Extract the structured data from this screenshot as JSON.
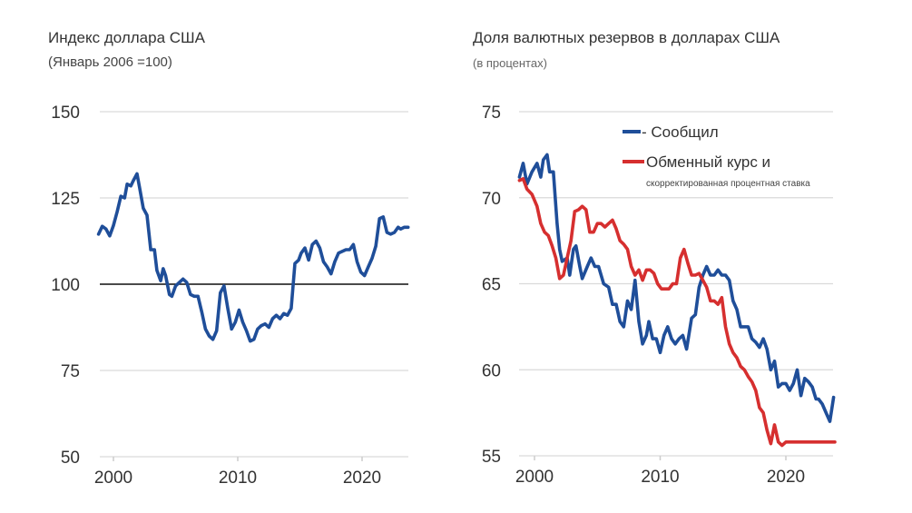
{
  "chart_data": [
    {
      "type": "line",
      "title": "Индекс доллара США",
      "subtitle": "(Январь 2006 =100)",
      "xlabel": "",
      "ylabel": "",
      "xlim": [
        1999,
        2024
      ],
      "ylim": [
        50,
        150
      ],
      "x_ticks": [
        "2000",
        "2010",
        "2020"
      ],
      "y_ticks": [
        "150",
        "125",
        "100",
        "75",
        "50"
      ],
      "reference_line": 100,
      "grid": true,
      "colors": {
        "series": "#1f4e99",
        "reference": "#111111",
        "grid": "#d9d9d9"
      },
      "series": [
        {
          "name": "Индекс доллара США",
          "x": [
            1998.8,
            1999.1,
            1999.4,
            1999.7,
            2000.0,
            2000.3,
            2000.6,
            2000.9,
            2001.1,
            2001.4,
            2001.6,
            2001.9,
            2002.1,
            2002.4,
            2002.7,
            2003.0,
            2003.3,
            2003.5,
            2003.8,
            2004.0,
            2004.2,
            2004.5,
            2004.7,
            2005.0,
            2005.3,
            2005.6,
            2005.9,
            2006.2,
            2006.5,
            2006.8,
            2007.1,
            2007.4,
            2007.7,
            2008.0,
            2008.3,
            2008.6,
            2008.9,
            2009.2,
            2009.5,
            2009.8,
            2010.1,
            2010.4,
            2010.7,
            2011.0,
            2011.3,
            2011.6,
            2011.9,
            2012.2,
            2012.5,
            2012.8,
            2013.1,
            2013.4,
            2013.7,
            2014.0,
            2014.3,
            2014.6,
            2014.9,
            2015.1,
            2015.4,
            2015.7,
            2016.0,
            2016.3,
            2016.6,
            2016.9,
            2017.2,
            2017.5,
            2017.8,
            2018.1,
            2018.4,
            2018.7,
            2019.0,
            2019.3,
            2019.6,
            2019.9,
            2020.2,
            2020.5,
            2020.8,
            2021.1,
            2021.4,
            2021.7,
            2022.0,
            2022.3,
            2022.6,
            2022.9,
            2023.1,
            2023.4,
            2023.7
          ],
          "values": [
            114.5,
            116.8,
            116,
            114,
            117,
            121,
            125.5,
            125,
            129,
            128.5,
            130,
            132,
            128,
            122,
            120,
            110,
            110,
            104,
            101,
            104.5,
            102.5,
            97,
            96.5,
            99.5,
            100.5,
            101.5,
            100.5,
            97,
            96.5,
            96.5,
            92,
            87,
            85,
            84,
            86.5,
            97.5,
            99.5,
            93,
            87,
            89,
            92.5,
            89,
            86.5,
            83.5,
            84,
            87,
            88,
            88.5,
            87.5,
            90,
            91,
            90,
            91.5,
            91,
            93,
            106,
            107,
            109,
            110.5,
            107,
            111.5,
            112.5,
            110.5,
            106.5,
            105,
            103,
            106.5,
            109,
            109.5,
            110,
            110,
            111.5,
            106.5,
            103.5,
            102.5,
            105,
            107.5,
            111,
            119,
            119.5,
            115,
            114.5,
            115,
            116.5,
            116,
            116.5,
            116.5
          ]
        }
      ]
    },
    {
      "type": "line",
      "title": "Доля валютных резервов в долларах США",
      "subtitle": "(в процентах)",
      "xlabel": "",
      "ylabel": "",
      "xlim": [
        1999,
        2024
      ],
      "ylim": [
        55,
        75
      ],
      "x_ticks": [
        "2000",
        "2010",
        "2020"
      ],
      "y_ticks": [
        "75",
        "70",
        "65",
        "60",
        "55"
      ],
      "grid": true,
      "legend": {
        "position": "top-right",
        "items": [
          {
            "label": "- Сообщил",
            "color": "#1f4e99"
          },
          {
            "label": "Обменный курс и",
            "sublabel": "скорректированная процентная ставка",
            "color": "#d62f2f"
          }
        ]
      },
      "series": [
        {
          "name": "Сообщил",
          "color": "#1f4e99",
          "x": [
            1998.8,
            1999.1,
            1999.4,
            1999.8,
            2000.2,
            2000.5,
            2000.7,
            2001.0,
            2001.2,
            2001.5,
            2001.8,
            2002.0,
            2002.2,
            2002.6,
            2002.8,
            2003.1,
            2003.3,
            2003.6,
            2003.8,
            2004.2,
            2004.5,
            2004.8,
            2005.1,
            2005.5,
            2005.9,
            2006.2,
            2006.5,
            2006.8,
            2007.1,
            2007.4,
            2007.7,
            2008.0,
            2008.3,
            2008.6,
            2008.9,
            2009.1,
            2009.4,
            2009.7,
            2010.0,
            2010.3,
            2010.6,
            2010.9,
            2011.2,
            2011.5,
            2011.8,
            2012.1,
            2012.5,
            2012.8,
            2013.1,
            2013.4,
            2013.7,
            2014.0,
            2014.3,
            2014.6,
            2014.9,
            2015.2,
            2015.5,
            2015.8,
            2016.1,
            2016.4,
            2016.7,
            2017.0,
            2017.3,
            2017.6,
            2017.9,
            2018.2,
            2018.5,
            2018.8,
            2019.1,
            2019.4,
            2019.7,
            2020.0,
            2020.3,
            2020.6,
            2020.9,
            2021.2,
            2021.5,
            2021.8,
            2022.1,
            2022.4,
            2022.6,
            2022.9,
            2023.2,
            2023.5,
            2023.8
          ],
          "values": [
            71.2,
            72,
            70.8,
            71.5,
            72,
            71.2,
            72.2,
            72.5,
            71.5,
            71.5,
            68.5,
            67,
            66.3,
            66.5,
            65.5,
            67,
            67.2,
            66,
            65.3,
            66,
            66.5,
            66,
            66,
            65,
            64.8,
            63.8,
            63.8,
            62.8,
            62.5,
            64,
            63.5,
            65.2,
            62.8,
            61.5,
            62,
            62.8,
            61.8,
            61.8,
            61,
            62,
            62.5,
            61.8,
            61.5,
            61.8,
            62,
            61.2,
            63,
            63.2,
            64.8,
            65.5,
            66,
            65.5,
            65.5,
            65.8,
            65.5,
            65.5,
            65.2,
            64,
            63.5,
            62.5,
            62.5,
            62.5,
            61.8,
            61.6,
            61.3,
            61.8,
            61.2,
            60,
            60.5,
            59,
            59.2,
            59.2,
            58.8,
            59.2,
            60,
            58.5,
            59.5,
            59.3,
            59,
            58.3,
            58.3,
            58,
            57.5,
            57,
            58.4
          ],
          "note": "approximate"
        },
        {
          "name": "Обменный курс и скорректированная процентная ставка",
          "color": "#d62f2f",
          "x": [
            1998.8,
            1999.1,
            1999.4,
            1999.8,
            2000.2,
            2000.5,
            2000.8,
            2001.1,
            2001.4,
            2001.7,
            2002.0,
            2002.3,
            2002.6,
            2002.9,
            2003.2,
            2003.5,
            2003.8,
            2004.1,
            2004.4,
            2004.7,
            2005.0,
            2005.3,
            2005.6,
            2005.9,
            2006.2,
            2006.5,
            2006.8,
            2007.1,
            2007.4,
            2007.7,
            2008.0,
            2008.3,
            2008.6,
            2008.9,
            2009.2,
            2009.5,
            2009.8,
            2010.1,
            2010.4,
            2010.7,
            2011.0,
            2011.3,
            2011.6,
            2011.9,
            2012.2,
            2012.5,
            2012.8,
            2013.1,
            2013.4,
            2013.7,
            2014.0,
            2014.3,
            2014.6,
            2014.9,
            2015.2,
            2015.5,
            2015.8,
            2016.1,
            2016.4,
            2016.7,
            2017.0,
            2017.3,
            2017.6,
            2017.9,
            2018.2,
            2018.5,
            2018.8,
            2019.1,
            2019.4,
            2019.7,
            2020.0,
            2020.3,
            2020.6,
            2020.9,
            2021.2,
            2021.5,
            2021.8,
            2022.1,
            2022.4,
            2022.7,
            2023.0,
            2023.3,
            2023.6,
            2023.9
          ],
          "values": [
            71,
            71.1,
            70.5,
            70.2,
            69.5,
            68.5,
            68,
            67.8,
            67.2,
            66.5,
            65.3,
            65.5,
            66.5,
            67.5,
            69.2,
            69.3,
            69.5,
            69.3,
            68,
            68,
            68.5,
            68.5,
            68.3,
            68.5,
            68.7,
            68.2,
            67.5,
            67.3,
            67,
            66,
            65.5,
            65.8,
            65.2,
            65.8,
            65.8,
            65.6,
            65,
            64.7,
            64.7,
            64.7,
            65,
            65,
            66.5,
            67,
            66.2,
            65.5,
            65.5,
            65.6,
            65.2,
            64.8,
            64,
            64,
            63.8,
            64.2,
            62.5,
            61.5,
            61,
            60.7,
            60.2,
            60,
            59.6,
            59.3,
            58.8,
            57.8,
            57.5,
            56.5,
            55.7,
            56.8,
            55.8,
            55.6,
            55.8,
            55.8,
            55.8,
            55.8,
            55.8,
            55.8,
            55.8,
            55.8,
            55.8,
            55.8,
            55.8,
            55.8,
            55.8,
            55.8
          ],
          "note": "approximate"
        }
      ]
    }
  ]
}
